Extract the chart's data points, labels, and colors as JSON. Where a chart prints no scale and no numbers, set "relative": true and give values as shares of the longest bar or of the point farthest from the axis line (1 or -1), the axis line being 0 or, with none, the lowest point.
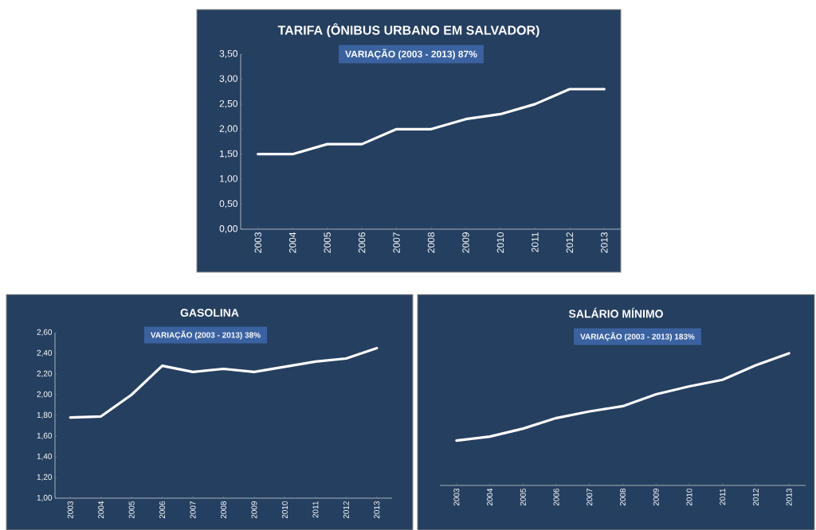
{
  "chart_data": [
    {
      "type": "line",
      "title": "TARIFA (ÔNIBUS URBANO EM SALVADOR)",
      "annotations": [
        "VARIAÇÃO (2003 - 2013)  87%"
      ],
      "categories": [
        "2003",
        "2004",
        "2005",
        "2006",
        "2007",
        "2008",
        "2009",
        "2010",
        "2011",
        "2012",
        "2013"
      ],
      "values": [
        1.5,
        1.5,
        1.7,
        1.7,
        2.0,
        2.0,
        2.2,
        2.3,
        2.5,
        2.8,
        2.8
      ],
      "color": "#ffffff",
      "ylim": [
        0,
        3.5
      ],
      "yticks": [
        {
          "value": 0,
          "label": "0,00"
        },
        {
          "value": 0.5,
          "label": "0,50"
        },
        {
          "value": 1,
          "label": "1,00"
        },
        {
          "value": 1.5,
          "label": "1,50"
        },
        {
          "value": 2,
          "label": "2,00"
        },
        {
          "value": 2.5,
          "label": "2,50"
        },
        {
          "value": 3,
          "label": "3,00"
        },
        {
          "value": 3.5,
          "label": "3,50"
        }
      ]
    },
    {
      "type": "line",
      "title": "GASOLINA",
      "annotations": [
        "VARIAÇÃO (2003 - 2013)  38%"
      ],
      "categories": [
        "2003",
        "2004",
        "2005",
        "2006",
        "2007",
        "2008",
        "2009",
        "2010",
        "2011",
        "2012",
        "2013"
      ],
      "values": [
        1.78,
        1.79,
        2.0,
        2.28,
        2.22,
        2.25,
        2.22,
        2.27,
        2.32,
        2.35,
        2.45
      ],
      "color": "#ffffff",
      "ylim": [
        1.0,
        2.6
      ],
      "yticks": [
        {
          "value": 1.0,
          "label": "1,00"
        },
        {
          "value": 1.2,
          "label": "1,20"
        },
        {
          "value": 1.4,
          "label": "1,40"
        },
        {
          "value": 1.6,
          "label": "1,60"
        },
        {
          "value": 1.8,
          "label": "1,80"
        },
        {
          "value": 2.0,
          "label": "2,00"
        },
        {
          "value": 2.2,
          "label": "2,20"
        },
        {
          "value": 2.4,
          "label": "2,40"
        },
        {
          "value": 2.6,
          "label": "2,60"
        }
      ]
    },
    {
      "type": "line",
      "title": "SALÁRIO MÍNIMO",
      "annotations": [
        "VARIAÇÃO (2003 - 2013) 183%"
      ],
      "categories": [
        "2003",
        "2004",
        "2005",
        "2006",
        "2007",
        "2008",
        "2009",
        "2010",
        "2011",
        "2012",
        "2013"
      ],
      "values": [
        0.34,
        0.37,
        0.43,
        0.51,
        0.56,
        0.6,
        0.69,
        0.75,
        0.8,
        0.91,
        1.0
      ],
      "color": "#ffffff",
      "relative": true
    }
  ]
}
